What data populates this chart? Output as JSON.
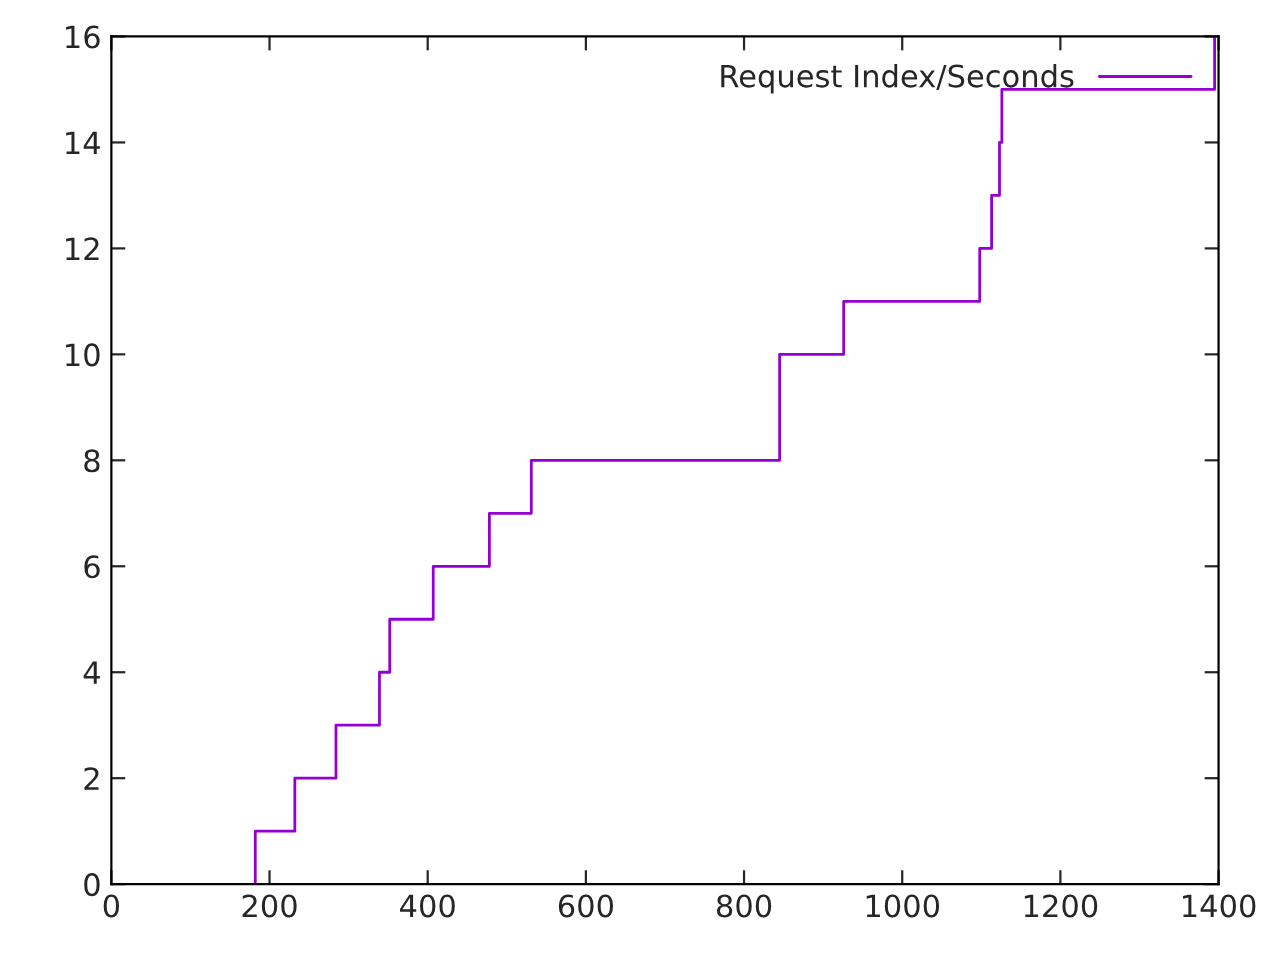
{
  "chart_data": {
    "type": "step",
    "xlim": [
      0,
      1400
    ],
    "ylim": [
      0,
      16
    ],
    "xticks": [
      0,
      200,
      400,
      600,
      800,
      1000,
      1200,
      1400
    ],
    "yticks": [
      0,
      2,
      4,
      6,
      8,
      10,
      12,
      14,
      16
    ],
    "grid": false,
    "legend": "top right",
    "series": [
      {
        "name": "Request Index/Seconds",
        "color": "#9400d3",
        "x": [
          182,
          182,
          232,
          284,
          339,
          352,
          407,
          478,
          531,
          845,
          926,
          1098,
          1113,
          1123,
          1126,
          1395
        ],
        "values": [
          0,
          1,
          2,
          3,
          4,
          5,
          6,
          7,
          8,
          10,
          11,
          12,
          13,
          14,
          15,
          16
        ]
      }
    ]
  }
}
